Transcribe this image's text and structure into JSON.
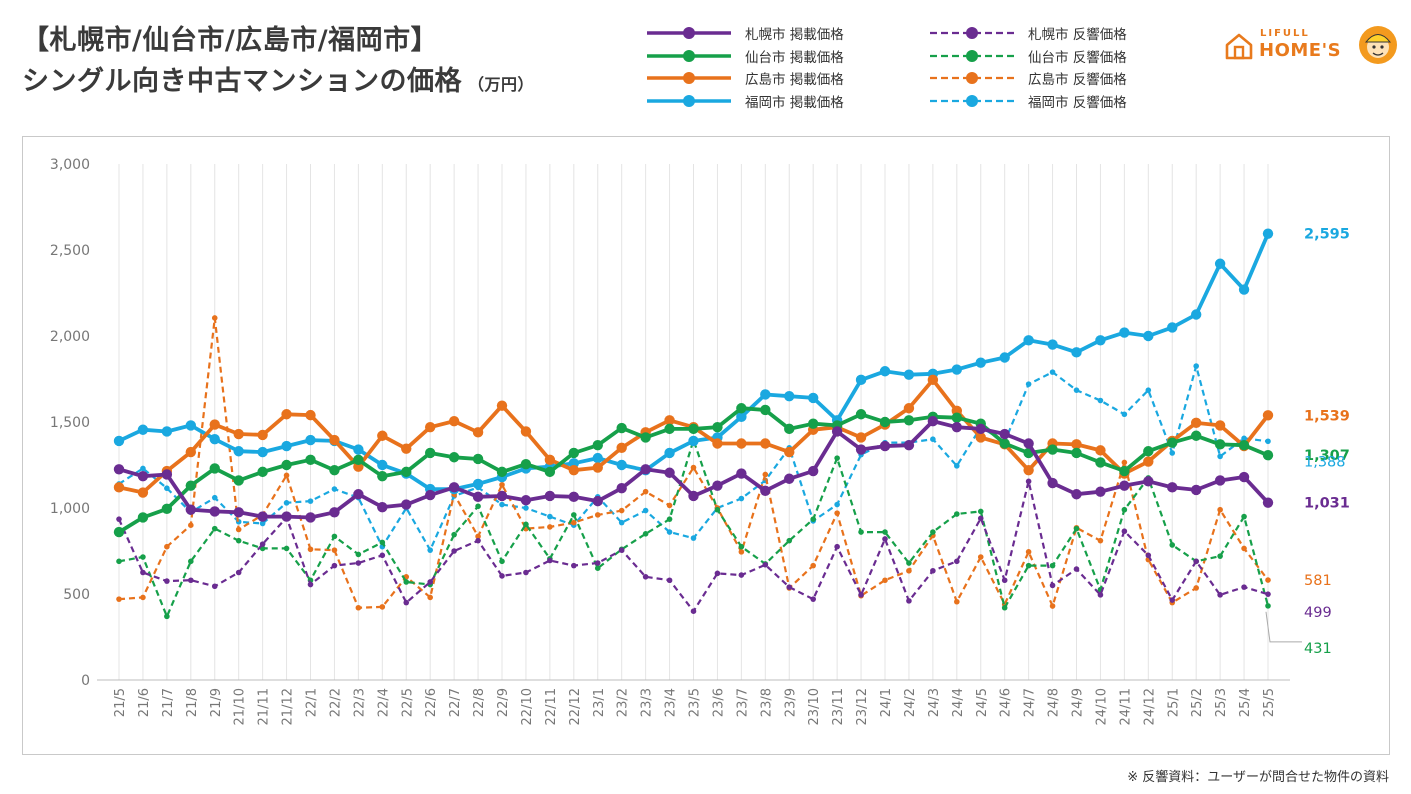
{
  "header": {
    "title_line1": "【札幌市/仙台市/広島市/福岡市】",
    "title_line2": "シングル向き中古マンションの価格",
    "unit": "（万円）"
  },
  "logo": {
    "line1": "LIFULL",
    "line2": "HOME'S",
    "icon": "house-icon",
    "mascot": "mascot-icon"
  },
  "footnote": "※ 反響資料：ユーザーが問合せた物件の資料",
  "colors": {
    "sapporo": "#6a2c91",
    "sendai": "#16a04a",
    "hiroshima": "#e8721c",
    "fukuoka": "#1aa8e0",
    "logo": "#e87a1d"
  },
  "legend": {
    "solid": [
      {
        "label": "札幌市 掲載価格",
        "color": "#6a2c91"
      },
      {
        "label": "仙台市 掲載価格",
        "color": "#16a04a"
      },
      {
        "label": "広島市 掲載価格",
        "color": "#e8721c"
      },
      {
        "label": "福岡市 掲載価格",
        "color": "#1aa8e0"
      }
    ],
    "dashed": [
      {
        "label": "札幌市 反響価格",
        "color": "#6a2c91"
      },
      {
        "label": "仙台市 反響価格",
        "color": "#16a04a"
      },
      {
        "label": "広島市 反響価格",
        "color": "#e8721c"
      },
      {
        "label": "福岡市 反響価格",
        "color": "#1aa8e0"
      }
    ]
  },
  "chart_data": {
    "type": "line",
    "title": "【札幌市/仙台市/広島市/福岡市】シングル向き中古マンションの価格",
    "ylabel": "万円",
    "xlabel": "",
    "ylim": [
      0,
      3000
    ],
    "yticks": [
      0,
      500,
      1000,
      1500,
      2000,
      2500,
      3000
    ],
    "ytick_labels": [
      "0",
      "500",
      "1,000",
      "1,500",
      "2,000",
      "2,500",
      "3,000"
    ],
    "grid": "vertical",
    "legend_position": "top",
    "categories": [
      "21/5",
      "21/6",
      "21/7",
      "21/8",
      "21/9",
      "21/10",
      "21/11",
      "21/12",
      "22/1",
      "22/2",
      "22/3",
      "22/4",
      "22/5",
      "22/6",
      "22/7",
      "22/8",
      "22/9",
      "22/10",
      "22/11",
      "22/12",
      "23/1",
      "23/2",
      "23/3",
      "23/4",
      "23/5",
      "23/6",
      "23/7",
      "23/8",
      "23/9",
      "23/10",
      "23/11",
      "23/12",
      "24/1",
      "24/2",
      "24/3",
      "24/4",
      "24/5",
      "24/6",
      "24/7",
      "24/8",
      "24/9",
      "24/10",
      "24/11",
      "24/12",
      "25/1",
      "25/2",
      "25/3",
      "25/4",
      "25/5"
    ],
    "series": [
      {
        "name": "福岡市 掲載価格",
        "style": "solid",
        "color": "#1aa8e0",
        "end_label": "2,595",
        "values": [
          1390,
          1455,
          1445,
          1480,
          1400,
          1330,
          1325,
          1360,
          1395,
          1390,
          1340,
          1250,
          1200,
          1110,
          1110,
          1140,
          1180,
          1230,
          1240,
          1260,
          1290,
          1250,
          1220,
          1320,
          1390,
          1410,
          1530,
          1660,
          1650,
          1640,
          1510,
          1745,
          1795,
          1775,
          1780,
          1805,
          1845,
          1875,
          1975,
          1950,
          1905,
          1975,
          2020,
          2000,
          2050,
          2125,
          2420,
          2270,
          2595
        ]
      },
      {
        "name": "広島市 掲載価格",
        "style": "solid",
        "color": "#e8721c",
        "end_label": "1,539",
        "values": [
          1120,
          1090,
          1215,
          1325,
          1485,
          1430,
          1425,
          1545,
          1540,
          1395,
          1240,
          1420,
          1345,
          1470,
          1505,
          1440,
          1595,
          1445,
          1280,
          1220,
          1235,
          1350,
          1440,
          1510,
          1470,
          1375,
          1375,
          1375,
          1325,
          1455,
          1470,
          1410,
          1485,
          1580,
          1745,
          1565,
          1410,
          1370,
          1220,
          1375,
          1370,
          1335,
          1200,
          1270,
          1390,
          1495,
          1480,
          1360,
          1539
        ]
      },
      {
        "name": "仙台市 掲載価格",
        "style": "solid",
        "color": "#16a04a",
        "end_label": "1,307",
        "values": [
          860,
          945,
          995,
          1130,
          1230,
          1160,
          1210,
          1250,
          1280,
          1220,
          1280,
          1185,
          1210,
          1320,
          1295,
          1285,
          1210,
          1255,
          1210,
          1320,
          1365,
          1465,
          1410,
          1460,
          1460,
          1470,
          1580,
          1570,
          1460,
          1490,
          1480,
          1545,
          1500,
          1510,
          1530,
          1525,
          1490,
          1375,
          1320,
          1340,
          1320,
          1265,
          1215,
          1330,
          1380,
          1420,
          1370,
          1365,
          1307
        ]
      },
      {
        "name": "札幌市 掲載価格",
        "style": "solid",
        "color": "#6a2c91",
        "end_label": "1,031",
        "values": [
          1225,
          1185,
          1195,
          990,
          980,
          975,
          950,
          950,
          945,
          975,
          1080,
          1005,
          1020,
          1075,
          1120,
          1065,
          1070,
          1045,
          1070,
          1065,
          1040,
          1115,
          1225,
          1205,
          1070,
          1130,
          1200,
          1100,
          1170,
          1215,
          1445,
          1340,
          1360,
          1365,
          1505,
          1470,
          1460,
          1430,
          1375,
          1145,
          1080,
          1095,
          1130,
          1155,
          1120,
          1105,
          1160,
          1180,
          1031
        ]
      },
      {
        "name": "福岡市 反響価格",
        "style": "dashed",
        "color": "#1aa8e0",
        "end_label": "1,388",
        "values": [
          1140,
          1230,
          1115,
          975,
          1060,
          920,
          910,
          1030,
          1040,
          1110,
          1060,
          775,
          1000,
          755,
          1070,
          1120,
          1020,
          1000,
          950,
          900,
          1065,
          915,
          985,
          860,
          825,
          1000,
          1055,
          1160,
          1350,
          925,
          1020,
          1310,
          1380,
          1380,
          1400,
          1245,
          1470,
          1385,
          1720,
          1790,
          1685,
          1625,
          1545,
          1685,
          1320,
          1825,
          1300,
          1405,
          1388
        ]
      },
      {
        "name": "広島市 反響価格",
        "style": "dashed",
        "color": "#e8721c",
        "end_label": "581",
        "values": [
          470,
          480,
          775,
          900,
          2105,
          875,
          960,
          1190,
          760,
          755,
          420,
          425,
          600,
          480,
          1080,
          835,
          1135,
          880,
          890,
          915,
          960,
          985,
          1095,
          1015,
          1235,
          1000,
          745,
          1195,
          535,
          665,
          970,
          490,
          580,
          635,
          840,
          455,
          715,
          440,
          745,
          430,
          885,
          810,
          1265,
          700,
          450,
          535,
          990,
          765,
          581
        ]
      },
      {
        "name": "仙台市 反響価格",
        "style": "dashed",
        "color": "#16a04a",
        "end_label": "431",
        "values": [
          690,
          715,
          370,
          690,
          880,
          810,
          765,
          765,
          580,
          835,
          730,
          800,
          570,
          555,
          845,
          1010,
          690,
          905,
          705,
          960,
          650,
          760,
          850,
          935,
          1395,
          990,
          775,
          675,
          810,
          935,
          1290,
          860,
          860,
          680,
          860,
          965,
          980,
          420,
          665,
          665,
          880,
          525,
          990,
          1175,
          785,
          690,
          720,
          950,
          431
        ]
      },
      {
        "name": "札幌市 反響価格",
        "style": "dashed",
        "color": "#6a2c91",
        "end_label": "499",
        "values": [
          935,
          625,
          575,
          580,
          545,
          625,
          790,
          945,
          555,
          665,
          680,
          725,
          450,
          570,
          750,
          810,
          605,
          625,
          695,
          665,
          680,
          755,
          600,
          580,
          400,
          620,
          610,
          670,
          540,
          470,
          775,
          495,
          820,
          460,
          635,
          690,
          940,
          580,
          1155,
          550,
          645,
          495,
          865,
          725,
          465,
          690,
          495,
          540,
          499
        ]
      }
    ]
  }
}
